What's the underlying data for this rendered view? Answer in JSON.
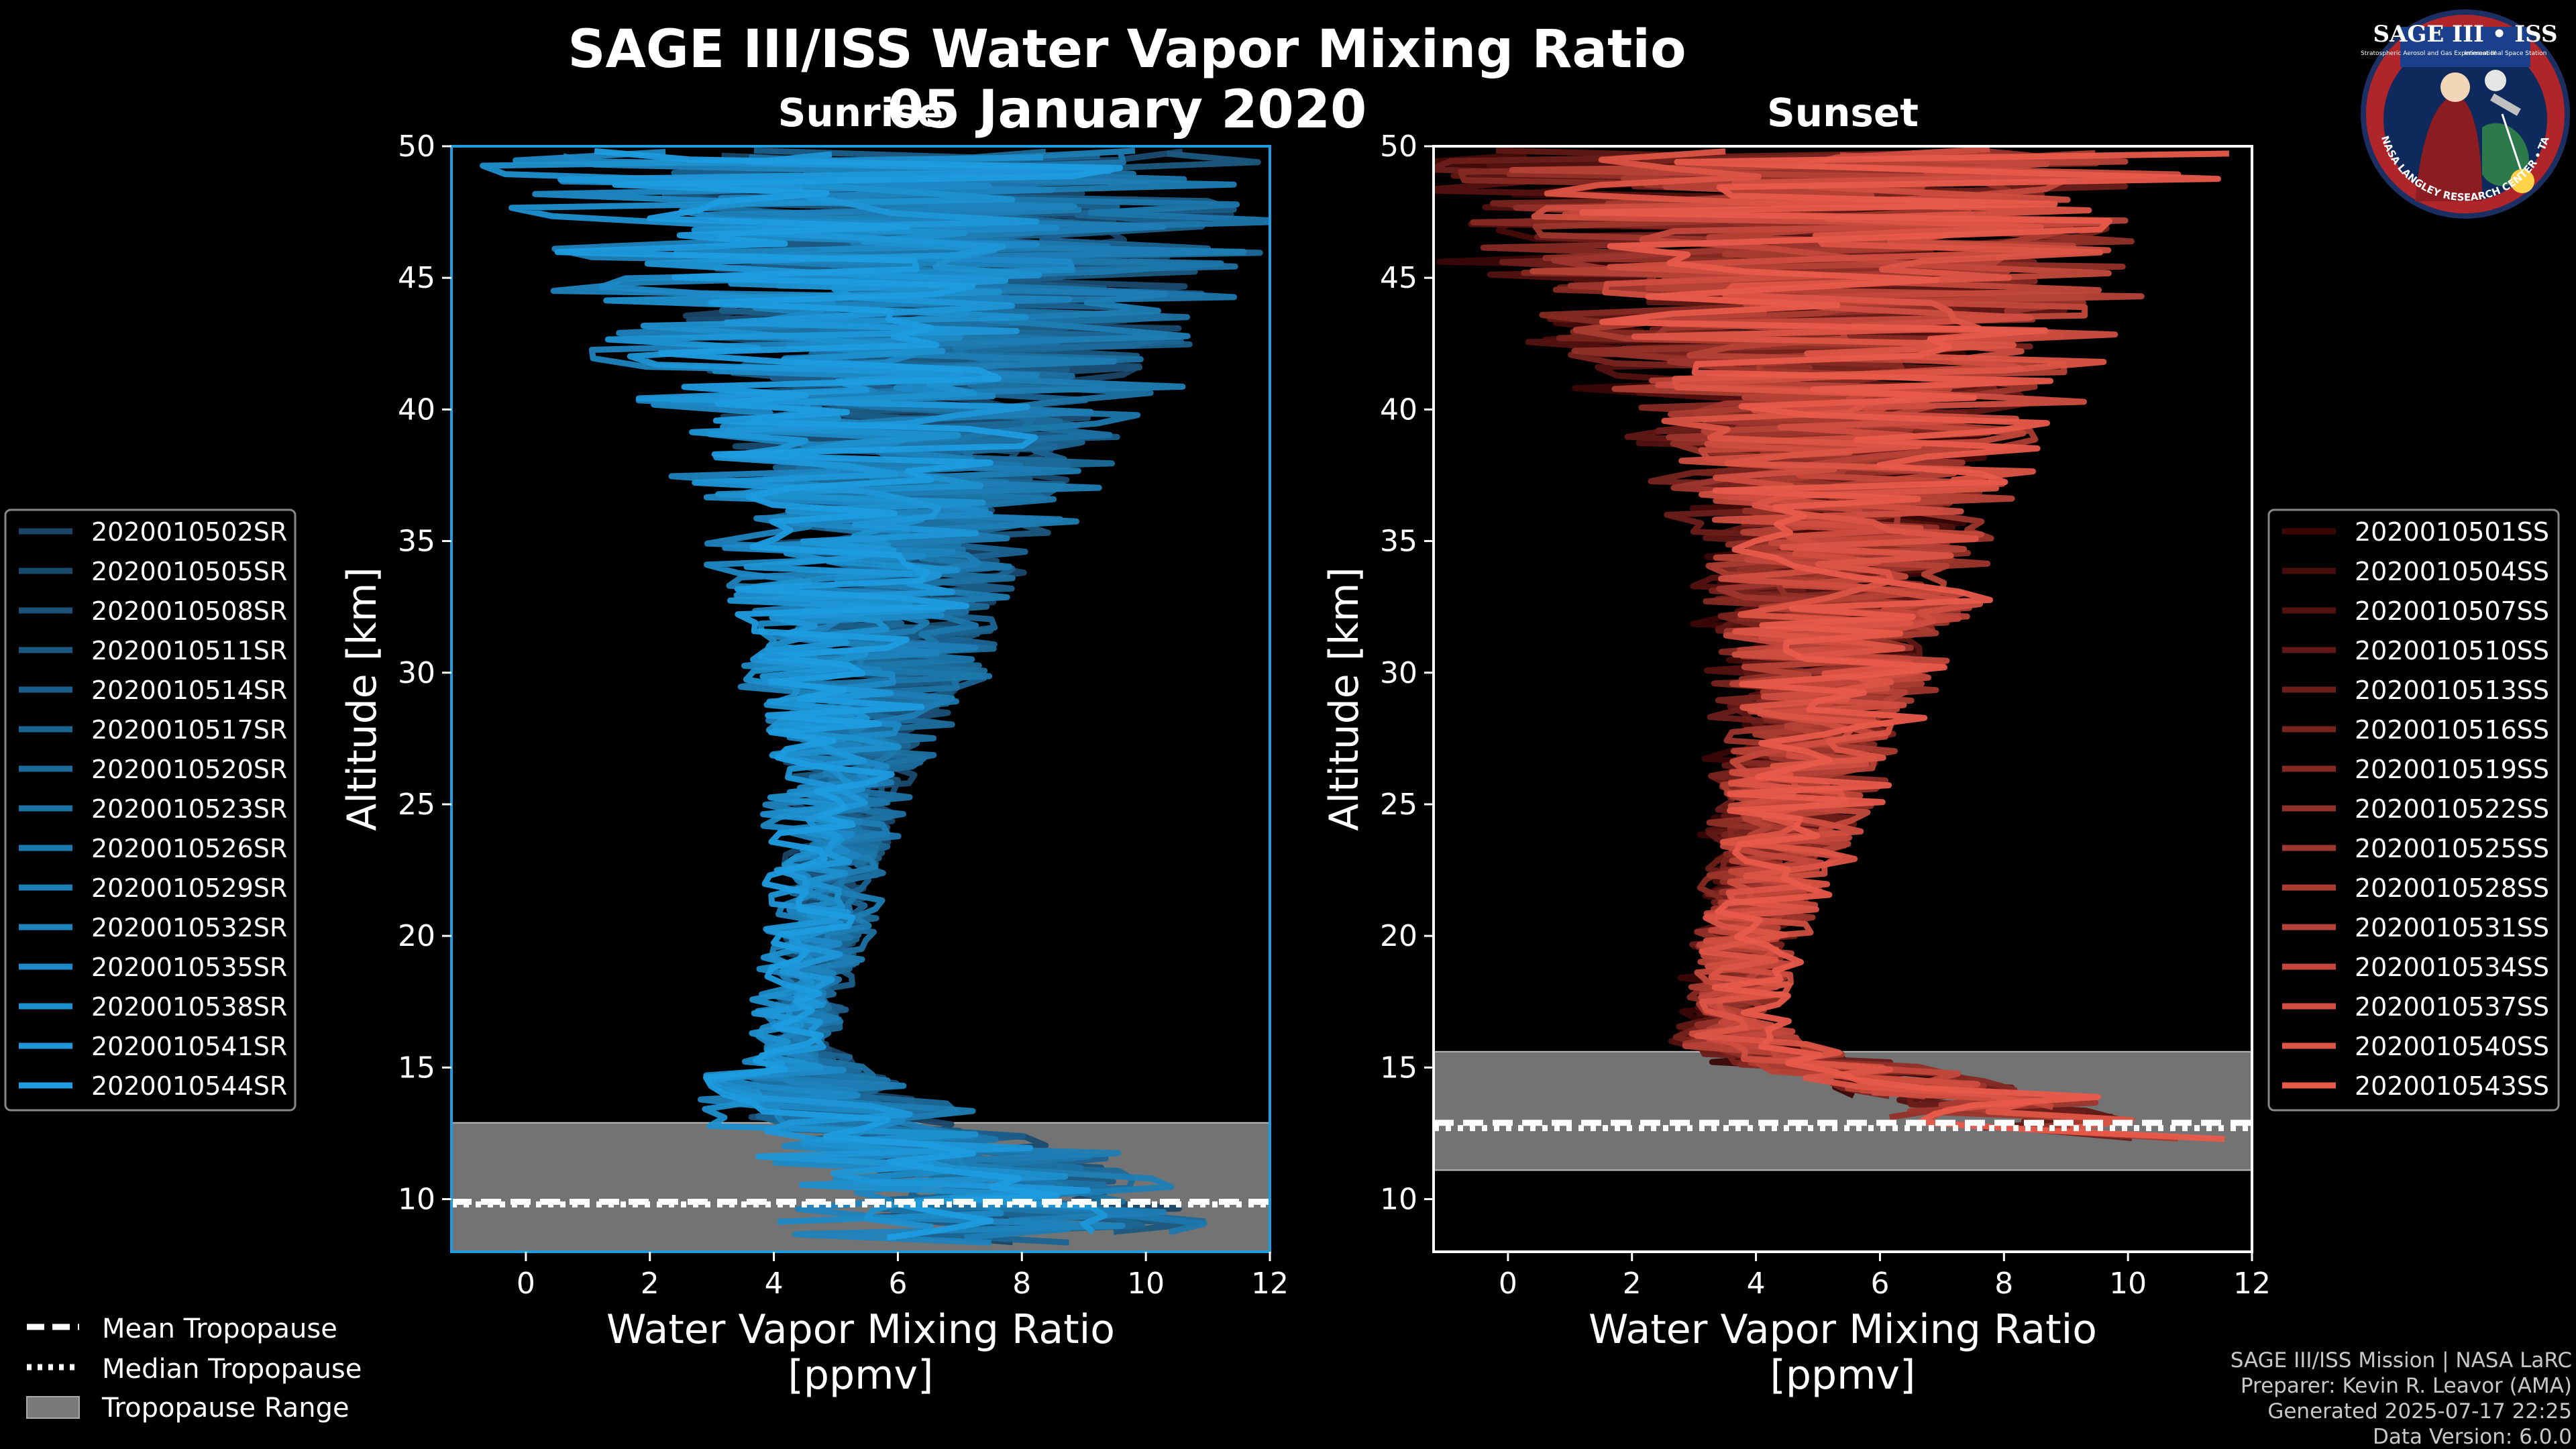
{
  "figure": {
    "title": "SAGE III/ISS Water Vapor Mixing Ratio",
    "date": "05 January 2020",
    "logo": {
      "text": "SAGE III • ISS",
      "line1": "Stratospheric Aerosol and Gas Experiment III",
      "line2": "International Space Station",
      "ring": "BALL • NASA LANGLEY RESEARCH CENTER • TAS • ESA"
    },
    "footer": [
      "SAGE III/ISS Mission | NASA LaRC",
      "Preparer: Kevin R. Leavor (AMA)",
      "Generated 2025-07-17 22:25",
      "Data Version: 6.0.0"
    ]
  },
  "tropopause_legend": [
    {
      "label": "Mean Tropopause",
      "style": "dashed"
    },
    {
      "label": "Median Tropopause",
      "style": "dotted"
    },
    {
      "label": "Tropopause Range",
      "style": "patch"
    }
  ],
  "chart_data": [
    {
      "type": "line",
      "subtitle": "Sunrise",
      "xlabel": "Water Vapor Mixing Ratio\n[ppmv]",
      "xlabel_lines": [
        "Water Vapor Mixing Ratio",
        "[ppmv]"
      ],
      "ylabel": "Altitude [km]",
      "xlim": [
        -1.2,
        12
      ],
      "ylim": [
        8,
        50
      ],
      "xticks": [
        0,
        2,
        4,
        6,
        8,
        10,
        12
      ],
      "yticks": [
        10,
        15,
        20,
        25,
        30,
        35,
        40,
        45,
        50
      ],
      "line_color_dark": "#1a4566",
      "line_color_light": "#1e9ce0",
      "border_color": "#1e9ce0",
      "tropopause": {
        "range": [
          8.0,
          12.9
        ],
        "mean": 9.9,
        "median": 9.8
      },
      "profile_center": [
        {
          "alt": 8.5,
          "x": 8.0
        },
        {
          "alt": 10,
          "x": 7.5
        },
        {
          "alt": 12,
          "x": 6.5
        },
        {
          "alt": 13,
          "x": 5.0
        },
        {
          "alt": 14,
          "x": 4.5
        },
        {
          "alt": 16,
          "x": 4.3
        },
        {
          "alt": 20,
          "x": 4.7
        },
        {
          "alt": 25,
          "x": 5.0
        },
        {
          "alt": 30,
          "x": 5.5
        },
        {
          "alt": 35,
          "x": 5.8
        },
        {
          "alt": 40,
          "x": 6.0
        },
        {
          "alt": 45,
          "x": 6.2
        },
        {
          "alt": 50,
          "x": 6.2
        }
      ],
      "profile_spread": [
        {
          "alt": 8.5,
          "s": 3.0
        },
        {
          "alt": 13,
          "s": 2.0
        },
        {
          "alt": 16,
          "s": 0.6
        },
        {
          "alt": 20,
          "s": 0.7
        },
        {
          "alt": 25,
          "s": 0.9
        },
        {
          "alt": 30,
          "s": 1.6
        },
        {
          "alt": 35,
          "s": 2.3
        },
        {
          "alt": 40,
          "s": 3.2
        },
        {
          "alt": 45,
          "s": 4.5
        },
        {
          "alt": 50,
          "s": 5.5
        }
      ],
      "series": [
        {
          "name": "2020010502SR"
        },
        {
          "name": "2020010505SR"
        },
        {
          "name": "2020010508SR"
        },
        {
          "name": "2020010511SR"
        },
        {
          "name": "2020010514SR"
        },
        {
          "name": "2020010517SR"
        },
        {
          "name": "2020010520SR"
        },
        {
          "name": "2020010523SR"
        },
        {
          "name": "2020010526SR"
        },
        {
          "name": "2020010529SR"
        },
        {
          "name": "2020010532SR"
        },
        {
          "name": "2020010535SR"
        },
        {
          "name": "2020010538SR"
        },
        {
          "name": "2020010541SR"
        },
        {
          "name": "2020010544SR"
        }
      ]
    },
    {
      "type": "line",
      "subtitle": "Sunset",
      "xlabel": "Water Vapor Mixing Ratio\n[ppmv]",
      "xlabel_lines": [
        "Water Vapor Mixing Ratio",
        "[ppmv]"
      ],
      "ylabel": "Altitude [km]",
      "xlim": [
        -1.2,
        12
      ],
      "ylim": [
        8,
        50
      ],
      "xticks": [
        0,
        2,
        4,
        6,
        8,
        10,
        12
      ],
      "yticks": [
        10,
        15,
        20,
        25,
        30,
        35,
        40,
        45,
        50
      ],
      "line_color_dark": "#3a0606",
      "line_color_light": "#e85a4a",
      "border_color": "#ffffff",
      "tropopause": {
        "range": [
          11.1,
          15.6
        ],
        "mean": 12.9,
        "median": 12.7
      },
      "profile_center": [
        {
          "alt": 12,
          "x": 9.5
        },
        {
          "alt": 14,
          "x": 7.5
        },
        {
          "alt": 15,
          "x": 5.5
        },
        {
          "alt": 16,
          "x": 3.8
        },
        {
          "alt": 17,
          "x": 3.7
        },
        {
          "alt": 20,
          "x": 4.0
        },
        {
          "alt": 25,
          "x": 4.8
        },
        {
          "alt": 30,
          "x": 5.5
        },
        {
          "alt": 35,
          "x": 5.8
        },
        {
          "alt": 40,
          "x": 5.8
        },
        {
          "alt": 45,
          "x": 5.8
        },
        {
          "alt": 50,
          "x": 5.8
        }
      ],
      "profile_spread": [
        {
          "alt": 12,
          "s": 2.5
        },
        {
          "alt": 15,
          "s": 1.5
        },
        {
          "alt": 17,
          "s": 0.7
        },
        {
          "alt": 20,
          "s": 0.9
        },
        {
          "alt": 25,
          "s": 1.3
        },
        {
          "alt": 30,
          "s": 1.8
        },
        {
          "alt": 35,
          "s": 2.4
        },
        {
          "alt": 40,
          "s": 3.5
        },
        {
          "alt": 45,
          "s": 5.0
        },
        {
          "alt": 50,
          "s": 6.0
        }
      ],
      "series": [
        {
          "name": "2020010501SS"
        },
        {
          "name": "2020010504SS"
        },
        {
          "name": "2020010507SS"
        },
        {
          "name": "2020010510SS"
        },
        {
          "name": "2020010513SS"
        },
        {
          "name": "2020010516SS"
        },
        {
          "name": "2020010519SS"
        },
        {
          "name": "2020010522SS"
        },
        {
          "name": "2020010525SS"
        },
        {
          "name": "2020010528SS"
        },
        {
          "name": "2020010531SS"
        },
        {
          "name": "2020010534SS"
        },
        {
          "name": "2020010537SS"
        },
        {
          "name": "2020010540SS"
        },
        {
          "name": "2020010543SS"
        }
      ]
    }
  ]
}
